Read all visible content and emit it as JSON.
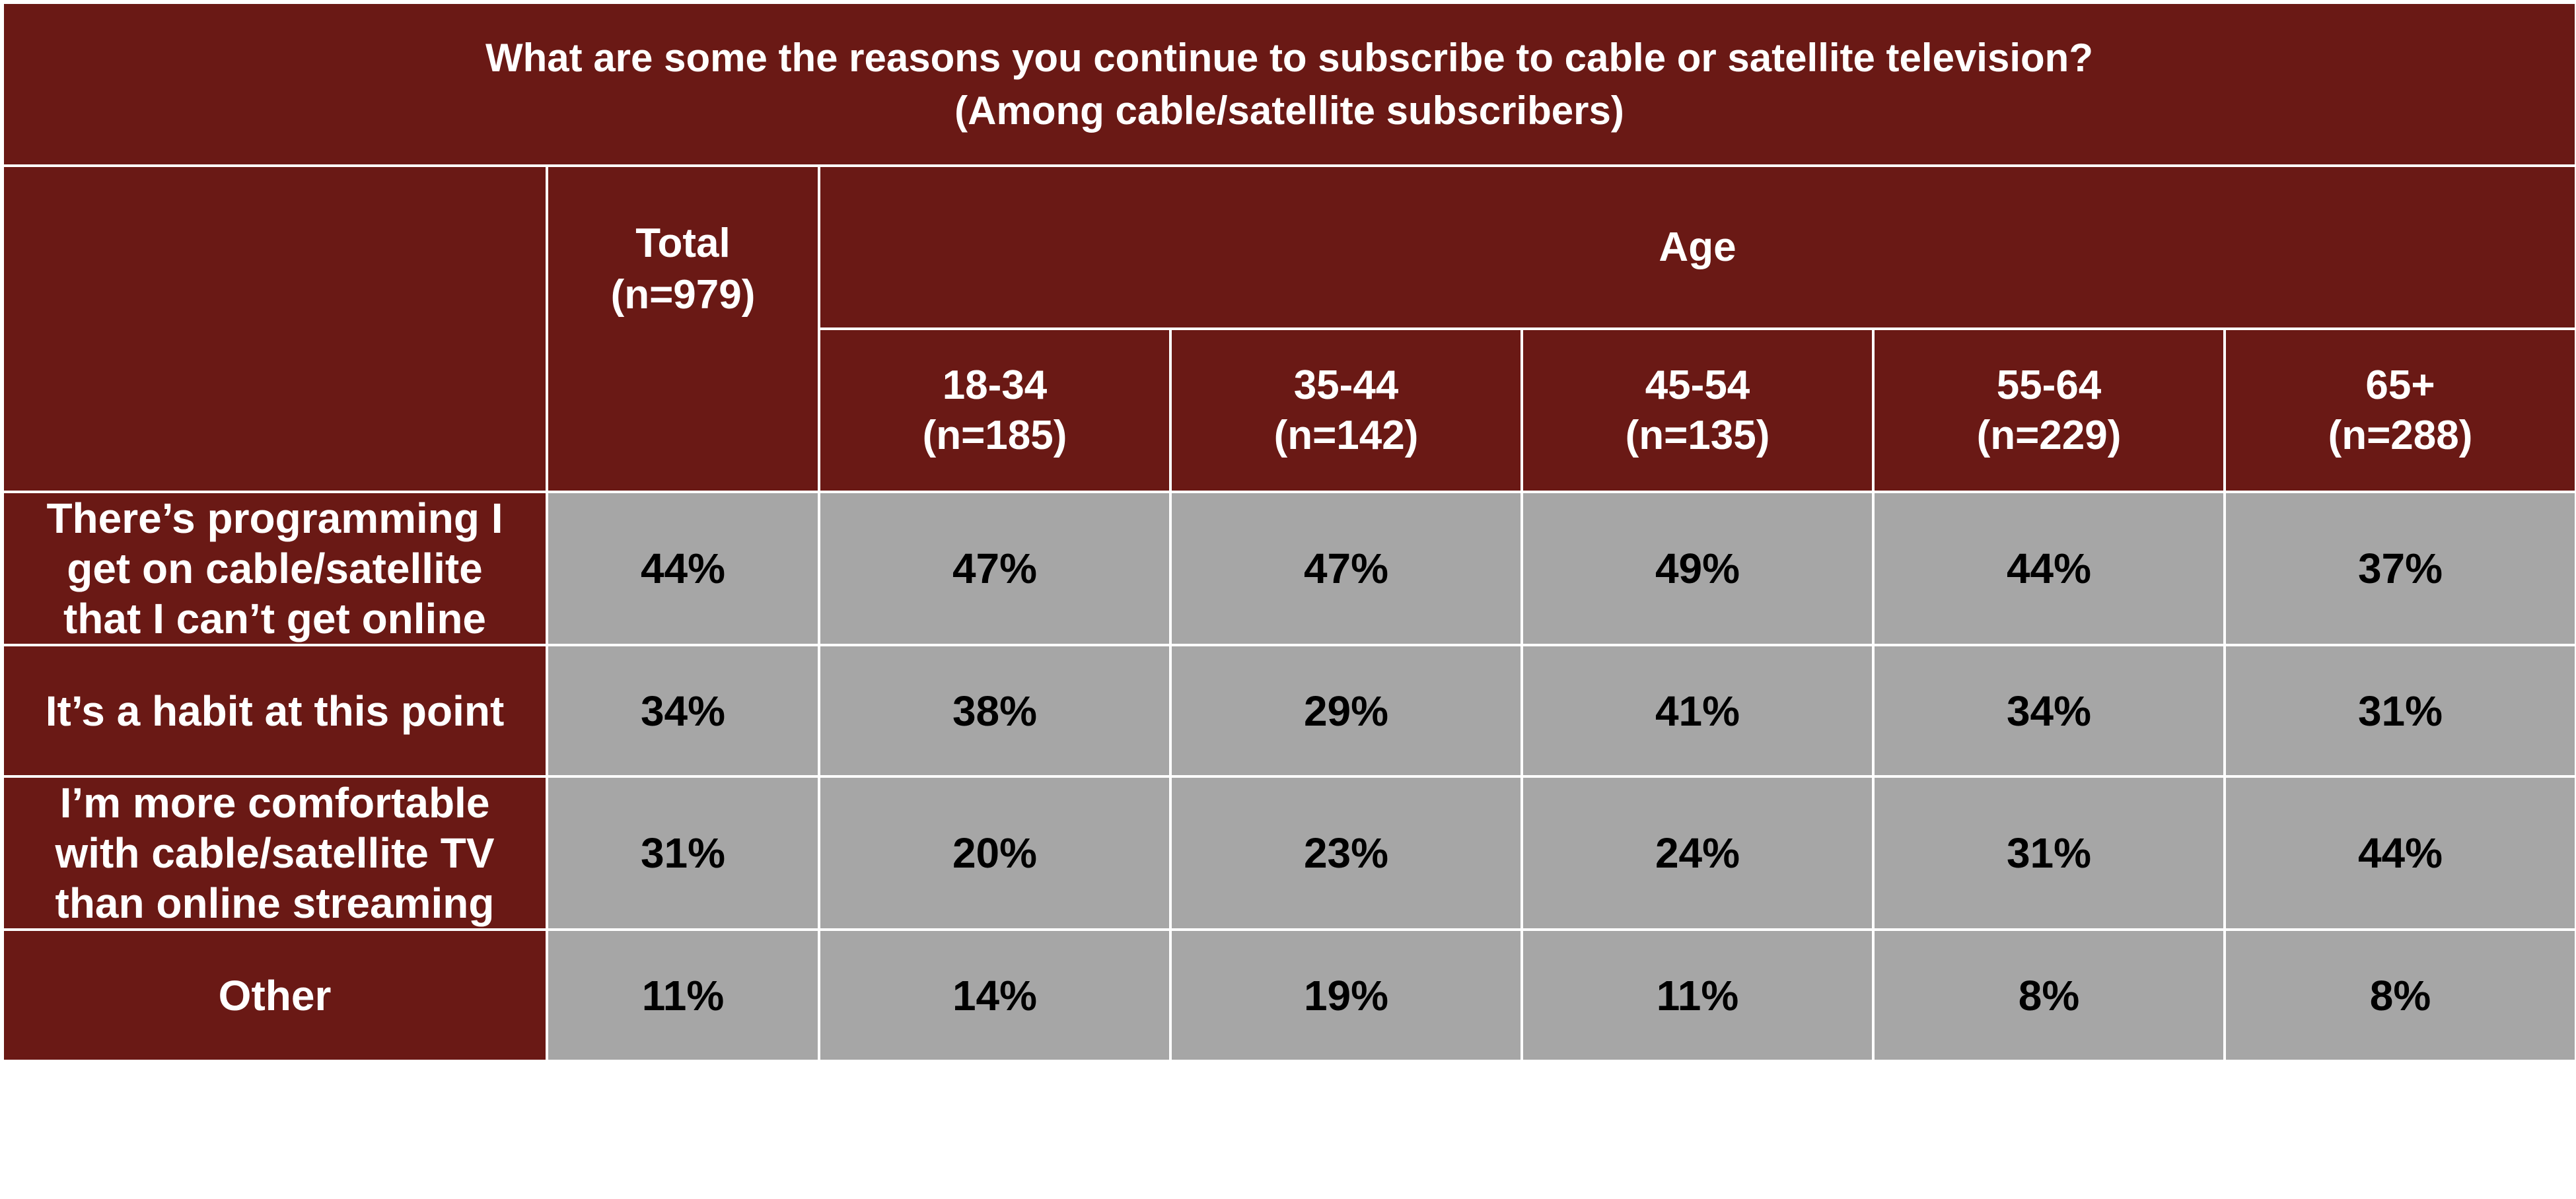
{
  "chart_data": {
    "type": "table",
    "title_lines": [
      "What are some the reasons you continue to subscribe to cable or satellite television?",
      "(Among cable/satellite subscribers)"
    ],
    "group_header": "Age",
    "total_header": [
      "Total",
      "(n=979)"
    ],
    "columns": [
      {
        "label": "18-34",
        "n": "(n=185)"
      },
      {
        "label": "35-44",
        "n": "(n=142)"
      },
      {
        "label": "45-54",
        "n": "(n=135)"
      },
      {
        "label": "55-64",
        "n": "(n=229)"
      },
      {
        "label": "65+",
        "n": "(n=288)"
      }
    ],
    "rows": [
      {
        "label_lines": [
          "There’s programming I",
          "get on cable/satellite",
          "that I can’t get online"
        ],
        "total": "44%",
        "values": [
          "47%",
          "47%",
          "49%",
          "44%",
          "37%"
        ]
      },
      {
        "label_lines": [
          "It’s a habit at this point"
        ],
        "total": "34%",
        "values": [
          "38%",
          "29%",
          "41%",
          "34%",
          "31%"
        ]
      },
      {
        "label_lines": [
          "I’m more comfortable",
          "with cable/satellite TV",
          "than online streaming"
        ],
        "total": "31%",
        "values": [
          "20%",
          "23%",
          "24%",
          "31%",
          "44%"
        ]
      },
      {
        "label_lines": [
          "Other"
        ],
        "total": "11%",
        "values": [
          "14%",
          "19%",
          "11%",
          "8%",
          "8%"
        ]
      }
    ]
  },
  "colors": {
    "header_bg": "#6a1915",
    "cell_bg": "#a6a6a6",
    "header_text": "#ffffff",
    "cell_text": "#000000"
  }
}
